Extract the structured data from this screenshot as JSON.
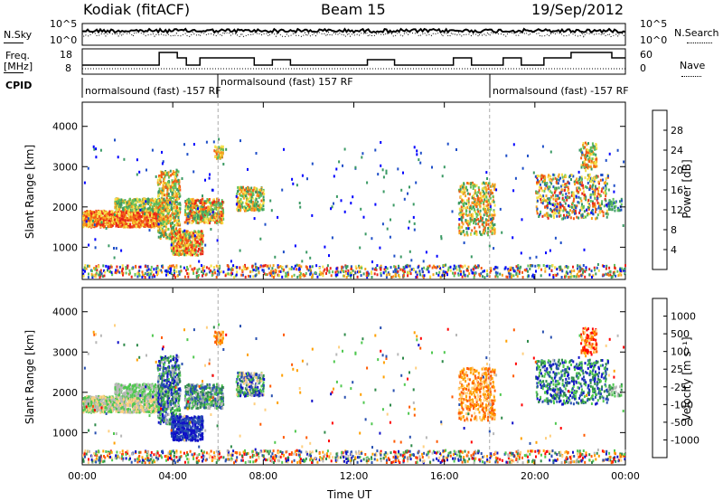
{
  "header": {
    "station": "Kodiak (fitACF)",
    "beam": "Beam 15",
    "date": "19/Sep/2012"
  },
  "status_panels": {
    "nsky_label": "N.Sky",
    "freq_label_line1": "Freq.",
    "freq_label_line2": "[MHz]",
    "cpid_label": "CPID",
    "nsearch_label": "N.Search",
    "nave_label": "Nave",
    "noise_left_ticks": [
      "10^5",
      "10^0"
    ],
    "noise_right_ticks": [
      "10^5",
      "10^0"
    ],
    "freq_left_ticks": [
      "18",
      "8"
    ],
    "freq_right_ticks": [
      "60",
      "0"
    ]
  },
  "cpid_segments": [
    {
      "text": "normalsound (fast) -157 RF",
      "start_hour": 0.0
    },
    {
      "text": "normalsound (fast) 157 RF",
      "start_hour": 6.0
    },
    {
      "text": "normalsound (fast) -157 RF",
      "start_hour": 18.0
    }
  ],
  "colors": {
    "power_scale": [
      "#0000ff",
      "#1f4fc8",
      "#3a9a64",
      "#62c05a",
      "#f5e04a",
      "#f6a21c",
      "#f25c15",
      "#e8231a"
    ],
    "velocity_scale": [
      "#ff0000",
      "#ff5a00",
      "#ffa000",
      "#ffd080",
      "#b8b8b8",
      "#50c850",
      "#2e8a4a",
      "#2850b0",
      "#1010c8"
    ],
    "dot_line": "#000000"
  },
  "chart_data": [
    {
      "type": "heatmap",
      "name_panel": "power",
      "ylabel": "Slant Range [km]",
      "yticks": [
        1000,
        2000,
        3000,
        4000
      ],
      "ylim": [
        200,
        4600
      ],
      "xlim_hours": [
        0,
        24
      ],
      "colorbar_label": "Power [dB]",
      "colorbar_ticks": [
        "4",
        "8",
        "12",
        "16",
        "20",
        "24",
        "28"
      ],
      "colorbar_range": [
        0,
        32
      ]
    },
    {
      "type": "heatmap",
      "name_panel": "velocity",
      "ylabel": "Slant Range [km]",
      "yticks": [
        1000,
        2000,
        3000,
        4000
      ],
      "ylim": [
        200,
        4600
      ],
      "xlim_hours": [
        0,
        24
      ],
      "xlabel": "Time UT",
      "xticks": [
        "00:00",
        "04:00",
        "08:00",
        "12:00",
        "16:00",
        "20:00",
        "00:00"
      ],
      "colorbar_label": "Velocity [m s⁻¹]",
      "colorbar_ticks": [
        "1000",
        "500",
        "100",
        "25",
        "-25",
        "-100",
        "-500",
        "-1000"
      ]
    }
  ]
}
